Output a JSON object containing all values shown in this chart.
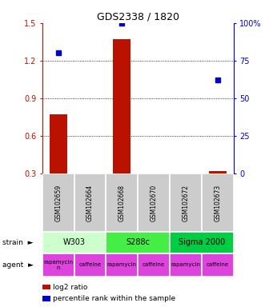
{
  "title": "GDS2338 / 1820",
  "samples": [
    "GSM102659",
    "GSM102664",
    "GSM102668",
    "GSM102670",
    "GSM102672",
    "GSM102673"
  ],
  "log2_ratio": [
    0.77,
    0.3,
    1.37,
    0.3,
    0.3,
    0.32
  ],
  "percentile": [
    80,
    0,
    100,
    0,
    0,
    62
  ],
  "log2_has_bar": [
    true,
    false,
    true,
    false,
    false,
    true
  ],
  "percentile_has_dot": [
    true,
    false,
    true,
    false,
    false,
    true
  ],
  "ylim_left": [
    0.3,
    1.5
  ],
  "ylim_right": [
    0,
    100
  ],
  "yticks_left": [
    0.3,
    0.6,
    0.9,
    1.2,
    1.5
  ],
  "yticks_right": [
    0,
    25,
    50,
    75,
    100
  ],
  "ytick_labels_left": [
    "0.3",
    "0.6",
    "0.9",
    "1.2",
    "1.5"
  ],
  "ytick_labels_right": [
    "0",
    "25",
    "50",
    "75",
    "100%"
  ],
  "bar_color": "#bb1100",
  "dot_color": "#0000cc",
  "strains": [
    {
      "label": "W303",
      "cols": [
        0,
        1
      ],
      "color": "#ccffcc"
    },
    {
      "label": "S288c",
      "cols": [
        2,
        3
      ],
      "color": "#44ee44"
    },
    {
      "label": "Sigma 2000",
      "cols": [
        4,
        5
      ],
      "color": "#00cc44"
    }
  ],
  "agents": [
    {
      "label": "rapamycin",
      "col": 0,
      "color": "#dd44dd"
    },
    {
      "label": "caffeine",
      "col": 1,
      "color": "#dd44dd"
    },
    {
      "label": "rapamycin",
      "col": 2,
      "color": "#dd44dd"
    },
    {
      "label": "caffeine",
      "col": 3,
      "color": "#dd44dd"
    },
    {
      "label": "rapamycin",
      "col": 4,
      "color": "#dd44dd"
    },
    {
      "label": "caffeine",
      "col": 5,
      "color": "#dd44dd"
    }
  ],
  "sample_box_color": "#cccccc",
  "legend_red_label": "log2 ratio",
  "legend_blue_label": "percentile rank within the sample"
}
